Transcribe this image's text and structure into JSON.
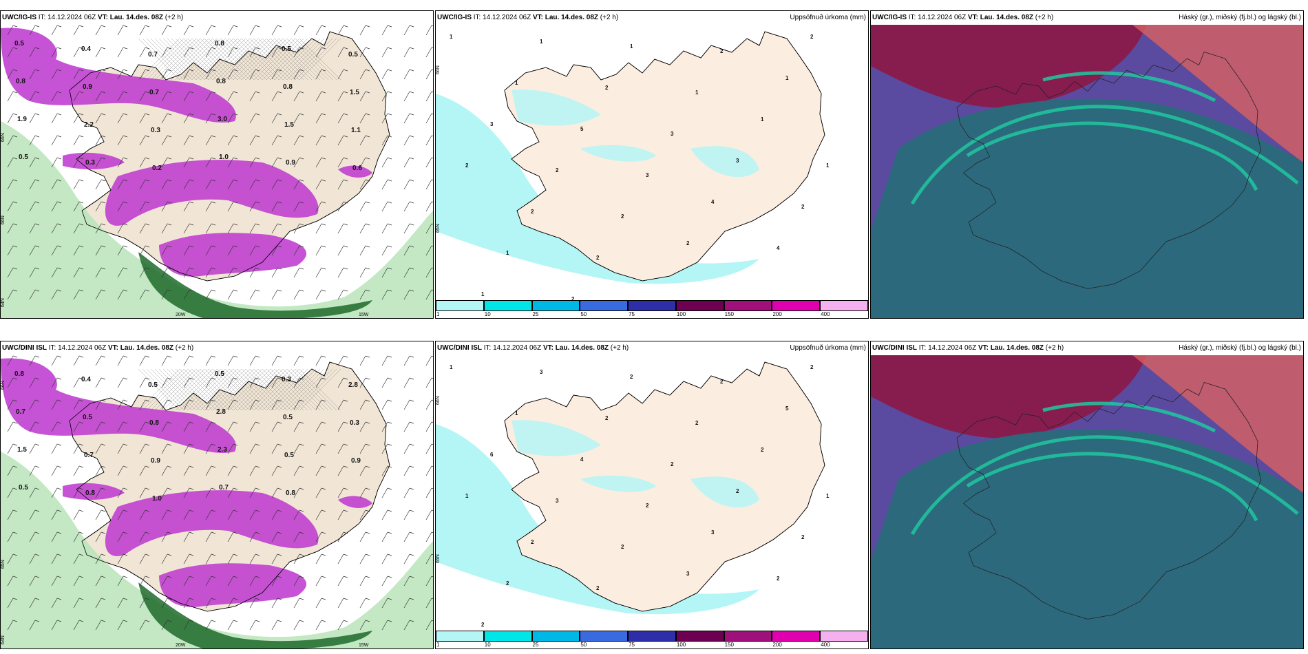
{
  "rows": [
    {
      "model": "UWC/IG-IS",
      "panels": [
        {
          "id": "wind",
          "model": "UWC/IG-IS",
          "it_label": "IT:",
          "it_value": "14.12.2024 06Z",
          "vt_label": "VT:",
          "vt_value": "Lau. 14.des. 08Z",
          "lead": "(+2 h)",
          "title": "",
          "values": [
            "0.5",
            "0.4",
            "0.7",
            "0.8",
            "0.5",
            "0.5",
            "0.8",
            "0.9",
            "0.7",
            "0.8",
            "0.8",
            "1.5",
            "1.9",
            "2.2",
            "0.3",
            "3.0",
            "1.5",
            "1.1",
            "0.5",
            "0.3",
            "0.2",
            "1.0",
            "0.9",
            "0.6"
          ],
          "lat_labels": [
            "66N",
            "65N",
            "64N"
          ],
          "lon_labels": [
            "20W",
            "15W"
          ]
        },
        {
          "id": "precip",
          "model": "UWC/IG-IS",
          "it_label": "IT:",
          "it_value": "14.12.2024 06Z",
          "vt_label": "VT:",
          "vt_value": "Lau. 14.des. 08Z",
          "lead": "(+2 h)",
          "title": "Uppsöfnuð úrkoma (mm)",
          "values": [
            "1",
            "1",
            "1",
            "2",
            "2",
            "1",
            "2",
            "1",
            "1",
            "3",
            "5",
            "3",
            "1",
            "2",
            "2",
            "3",
            "3",
            "1",
            "2",
            "2",
            "4",
            "2",
            "1",
            "2",
            "2",
            "4",
            "1",
            "2"
          ],
          "lat_labels": [
            "66N",
            "65N"
          ]
        },
        {
          "id": "clouds",
          "model": "UWC/IG-IS",
          "it_label": "IT:",
          "it_value": "14.12.2024 06Z",
          "vt_label": "VT:",
          "vt_value": "Lau. 14.des. 08Z",
          "lead": "(+2 h)",
          "title": "Háský (gr.), miðský (fj.bl.) og lágský (bl.)"
        }
      ]
    },
    {
      "model": "UWC/DINI ISL",
      "panels": [
        {
          "id": "wind",
          "model": "UWC/DINI ISL",
          "it_label": "IT:",
          "it_value": "14.12.2024 06Z",
          "vt_label": "VT:",
          "vt_value": "Lau. 14.des. 08Z",
          "lead": "(+2 h)",
          "title": "",
          "values": [
            "0.8",
            "0.4",
            "0.5",
            "0.5",
            "0.3",
            "2.8",
            "0.7",
            "0.5",
            "0.8",
            "2.8",
            "0.5",
            "0.3",
            "1.5",
            "0.7",
            "0.9",
            "2.3",
            "0.5",
            "0.9",
            "0.5",
            "0.8",
            "1.0",
            "0.7",
            "0.8"
          ],
          "lat_labels": [
            "66N",
            "65N",
            "64N"
          ],
          "lon_labels": [
            "20W",
            "15W"
          ]
        },
        {
          "id": "precip",
          "model": "UWC/DINI ISL",
          "it_label": "IT:",
          "it_value": "14.12.2024 06Z",
          "vt_label": "VT:",
          "vt_value": "Lau. 14.des. 08Z",
          "lead": "(+2 h)",
          "title": "Uppsöfnuð úrkoma (mm)",
          "values": [
            "1",
            "3",
            "2",
            "2",
            "2",
            "1",
            "2",
            "2",
            "5",
            "6",
            "4",
            "2",
            "2",
            "1",
            "3",
            "2",
            "2",
            "1",
            "2",
            "2",
            "3",
            "2",
            "2",
            "2",
            "3",
            "2",
            "2"
          ],
          "lat_labels": [
            "66N",
            "65N"
          ]
        },
        {
          "id": "clouds",
          "model": "UWC/DINI ISL",
          "it_label": "IT:",
          "it_value": "14.12.2024 06Z",
          "vt_label": "VT:",
          "vt_value": "Lau. 14.des. 08Z",
          "lead": "(+2 h)",
          "title": "Háský (gr.), miðský (fj.bl.) og lágský (bl.)"
        }
      ]
    }
  ],
  "precip_colorbar": {
    "ticks": [
      "1",
      "10",
      "25",
      "50",
      "75",
      "100",
      "150",
      "200",
      "400"
    ],
    "colors": [
      "#b4f5f5",
      "#00e5e8",
      "#00b8e6",
      "#3a6ae0",
      "#2e2ea8",
      "#6d0050",
      "#a0107a",
      "#e000b0",
      "#f5b0f0"
    ]
  },
  "colors": {
    "land": "#f1e6d6",
    "land_precip": "#fbeee0",
    "precip_light": "#b4f5f5",
    "precip_purple": "#c040d0",
    "green_dark": "#1e6a2a",
    "green_light": "#b8e4b8",
    "cloud_high": "#8a1a4a",
    "cloud_low": "#2a6a7a",
    "cloud_mid": "#20c8a0"
  }
}
